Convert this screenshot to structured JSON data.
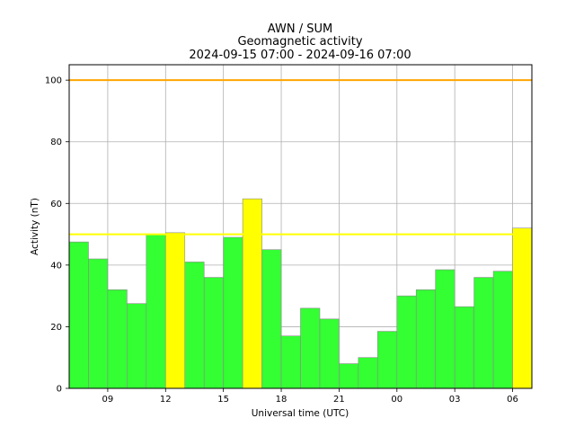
{
  "chart_data": {
    "type": "bar",
    "title": "AWN / SUM",
    "subtitle": "Geomagnetic activity",
    "date_range": "2024-09-15 07:00 - 2024-09-16 07:00",
    "xlabel": "Universal time (UTC)",
    "ylabel": "Activity (nT)",
    "ylim": [
      0,
      105
    ],
    "yticks": [
      0,
      20,
      40,
      60,
      80,
      100
    ],
    "x_range_hours": [
      7,
      31
    ],
    "xticks": [
      {
        "hour": 9,
        "label": "09"
      },
      {
        "hour": 12,
        "label": "12"
      },
      {
        "hour": 15,
        "label": "15"
      },
      {
        "hour": 18,
        "label": "18"
      },
      {
        "hour": 21,
        "label": "21"
      },
      {
        "hour": 24,
        "label": "00"
      },
      {
        "hour": 27,
        "label": "03"
      },
      {
        "hour": 30,
        "label": "06"
      }
    ],
    "grid": true,
    "bars": [
      {
        "start_hour": 7,
        "value": 47.5,
        "level": "quiet"
      },
      {
        "start_hour": 8,
        "value": 42,
        "level": "quiet"
      },
      {
        "start_hour": 9,
        "value": 32,
        "level": "quiet"
      },
      {
        "start_hour": 10,
        "value": 27.5,
        "level": "quiet"
      },
      {
        "start_hour": 11,
        "value": 50,
        "level": "quiet"
      },
      {
        "start_hour": 12,
        "value": 50.5,
        "level": "active"
      },
      {
        "start_hour": 13,
        "value": 41,
        "level": "quiet"
      },
      {
        "start_hour": 14,
        "value": 36,
        "level": "quiet"
      },
      {
        "start_hour": 15,
        "value": 49,
        "level": "quiet"
      },
      {
        "start_hour": 16,
        "value": 61.5,
        "level": "active"
      },
      {
        "start_hour": 17,
        "value": 45,
        "level": "quiet"
      },
      {
        "start_hour": 18,
        "value": 17,
        "level": "quiet"
      },
      {
        "start_hour": 19,
        "value": 26,
        "level": "quiet"
      },
      {
        "start_hour": 20,
        "value": 22.5,
        "level": "quiet"
      },
      {
        "start_hour": 21,
        "value": 8,
        "level": "quiet"
      },
      {
        "start_hour": 22,
        "value": 10,
        "level": "quiet"
      },
      {
        "start_hour": 23,
        "value": 18.5,
        "level": "quiet"
      },
      {
        "start_hour": 24,
        "value": 30,
        "level": "quiet"
      },
      {
        "start_hour": 25,
        "value": 32,
        "level": "quiet"
      },
      {
        "start_hour": 26,
        "value": 38.5,
        "level": "quiet"
      },
      {
        "start_hour": 27,
        "value": 26.5,
        "level": "quiet"
      },
      {
        "start_hour": 28,
        "value": 36,
        "level": "quiet"
      },
      {
        "start_hour": 29,
        "value": 38,
        "level": "quiet"
      },
      {
        "start_hour": 30,
        "value": 52,
        "level": "active"
      }
    ],
    "thresholds": [
      {
        "value": 50,
        "color": "#ffff00"
      },
      {
        "value": 100,
        "color": "#ffa500"
      }
    ],
    "colors": {
      "quiet": "#33ff33",
      "active": "#ffff00",
      "bar_edge": "#8a8a8a",
      "grid": "#b0b0b0"
    }
  }
}
